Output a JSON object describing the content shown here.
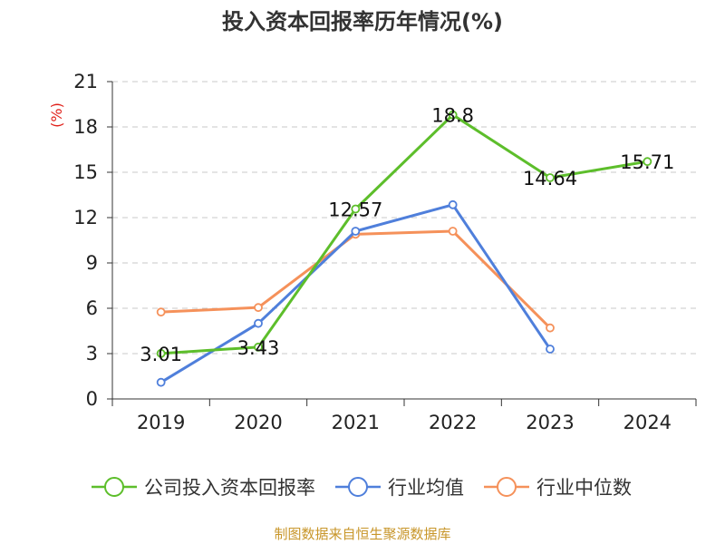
{
  "chart_data": {
    "type": "line",
    "title": "投入资本回报率历年情况(%)",
    "ylabel": "(%)",
    "xlabel": "",
    "categories": [
      "2019",
      "2020",
      "2021",
      "2022",
      "2023",
      "2024"
    ],
    "ylim": [
      0,
      21
    ],
    "yticks": [
      0,
      3,
      6,
      9,
      12,
      15,
      18,
      21
    ],
    "grid": true,
    "legend_position": "bottom",
    "series": [
      {
        "name": "公司投入资本回报率",
        "color": "#5dbe2b",
        "values": [
          3.01,
          3.43,
          12.57,
          18.8,
          14.64,
          15.71
        ],
        "labels": [
          "3.01",
          "3.43",
          "12.57",
          "18.8",
          "14.64",
          "15.71"
        ],
        "show_labels": true
      },
      {
        "name": "行业均值",
        "color": "#4f7fdb",
        "values": [
          1.1,
          5.0,
          11.1,
          12.85,
          3.3,
          null
        ],
        "show_labels": false
      },
      {
        "name": "行业中位数",
        "color": "#f5915a",
        "values": [
          5.75,
          6.05,
          10.9,
          11.1,
          4.7,
          null
        ],
        "show_labels": false
      }
    ],
    "source": "制图数据来自恒生聚源数据库"
  }
}
